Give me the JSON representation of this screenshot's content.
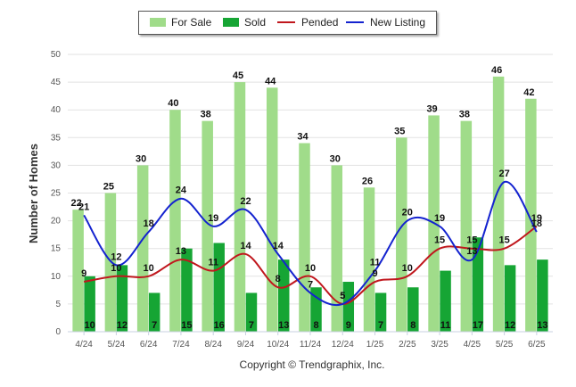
{
  "chart_data": {
    "type": "bar",
    "categories": [
      "4/24",
      "5/24",
      "6/24",
      "7/24",
      "8/24",
      "9/24",
      "10/24",
      "11/24",
      "12/24",
      "1/25",
      "2/25",
      "3/25",
      "4/25",
      "5/25",
      "6/25"
    ],
    "series": [
      {
        "name": "For Sale",
        "type": "bar",
        "color": "#a0dc8a",
        "values": [
          22,
          25,
          30,
          40,
          38,
          45,
          44,
          34,
          30,
          26,
          35,
          39,
          38,
          46,
          42
        ]
      },
      {
        "name": "Sold",
        "type": "bar",
        "color": "#16a534",
        "values": [
          10,
          12,
          7,
          15,
          16,
          7,
          13,
          8,
          9,
          7,
          8,
          11,
          17,
          12,
          13
        ]
      },
      {
        "name": "Pended",
        "type": "line",
        "color": "#c0171d",
        "values": [
          9,
          10,
          10,
          13,
          11,
          14,
          8,
          10,
          5,
          9,
          10,
          15,
          15,
          15,
          19
        ]
      },
      {
        "name": "New Listing",
        "type": "line",
        "color": "#1423cf",
        "values": [
          21,
          12,
          18,
          24,
          19,
          22,
          14,
          7,
          5,
          11,
          20,
          19,
          13,
          27,
          18
        ]
      }
    ],
    "ylabel": "Number of Homes",
    "xlabel": "",
    "ylim": [
      0,
      50
    ],
    "yticks": [
      0,
      5,
      10,
      15,
      20,
      25,
      30,
      35,
      40,
      45,
      50
    ],
    "grid": true,
    "legend_position": "top-center"
  },
  "footer": {
    "copyright": "Copyright © Trendgraphix, Inc."
  }
}
